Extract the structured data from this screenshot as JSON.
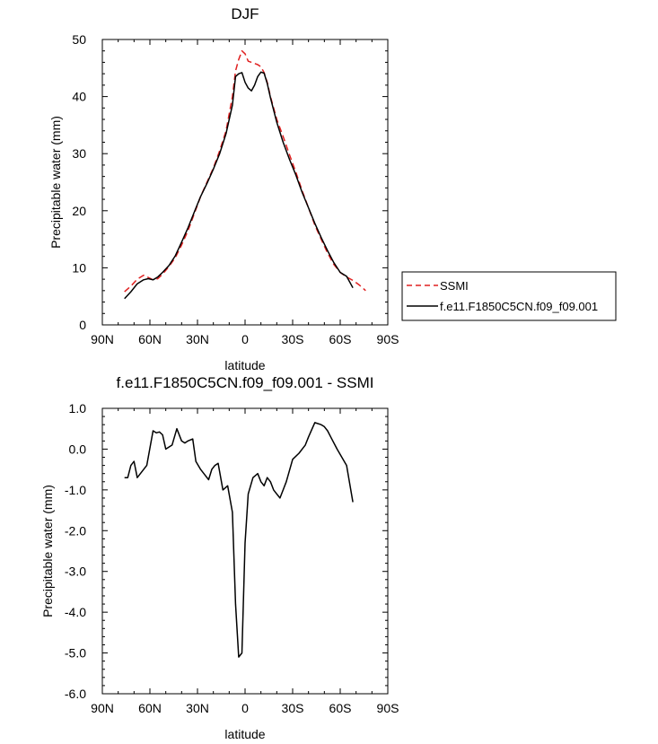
{
  "chart_data": [
    {
      "type": "line",
      "title": "DJF",
      "xlabel": "latitude",
      "ylabel": "Precipitable water (mm)",
      "xlim": [
        -90,
        90
      ],
      "ylim": [
        0,
        50
      ],
      "x_ticks": [
        -90,
        -60,
        -30,
        0,
        30,
        60,
        90
      ],
      "x_tick_labels": [
        "90N",
        "60N",
        "30N",
        "0",
        "30S",
        "60S",
        "90S"
      ],
      "y_ticks": [
        0,
        10,
        20,
        30,
        40,
        50
      ],
      "y_tick_labels": [
        "0",
        "10",
        "20",
        "30",
        "40",
        "50"
      ],
      "legend": "right",
      "series": [
        {
          "name": "SSMI",
          "color": "#e02020",
          "dash": "dashed",
          "x": [
            -76,
            -72,
            -68,
            -64,
            -61,
            -58,
            -55,
            -52,
            -48,
            -44,
            -40,
            -36,
            -32,
            -28,
            -24,
            -20,
            -16,
            -12,
            -8,
            -6,
            -4,
            -2,
            0,
            2,
            4,
            6,
            8,
            10,
            12,
            14,
            16,
            20,
            24,
            28,
            32,
            36,
            40,
            44,
            48,
            52,
            56,
            60,
            64,
            68,
            72,
            76
          ],
          "values": [
            5.8,
            6.8,
            8.0,
            8.7,
            8.3,
            7.9,
            8.1,
            8.9,
            10.2,
            11.8,
            14.0,
            16.5,
            19.5,
            22.5,
            25.0,
            27.5,
            30.5,
            34.0,
            40.0,
            44.5,
            46.5,
            48.0,
            47.5,
            46.2,
            46.0,
            45.8,
            45.6,
            45.2,
            44.2,
            42.5,
            40.0,
            36.0,
            33.0,
            29.8,
            26.8,
            23.5,
            20.5,
            17.5,
            15.0,
            12.6,
            10.6,
            9.2,
            8.4,
            7.8,
            7.0,
            6.0
          ]
        },
        {
          "name": "f.e11.F1850C5CN.f09_f09.001",
          "color": "#000000",
          "dash": "solid",
          "x": [
            -76,
            -72,
            -68,
            -64,
            -61,
            -58,
            -55,
            -52,
            -48,
            -44,
            -40,
            -36,
            -32,
            -28,
            -24,
            -20,
            -16,
            -12,
            -8,
            -6,
            -4,
            -2,
            0,
            2,
            4,
            6,
            8,
            10,
            12,
            14,
            16,
            20,
            24,
            28,
            32,
            36,
            40,
            44,
            48,
            52,
            56,
            60,
            64,
            68
          ],
          "values": [
            4.6,
            5.8,
            7.2,
            7.9,
            8.1,
            7.9,
            8.4,
            9.2,
            10.4,
            12.1,
            14.5,
            17.0,
            19.8,
            22.5,
            24.8,
            27.3,
            30.0,
            33.5,
            38.5,
            43.5,
            44.0,
            44.2,
            42.5,
            41.5,
            41.0,
            42.0,
            43.5,
            44.3,
            44.1,
            42.3,
            39.8,
            35.5,
            32.0,
            29.0,
            26.3,
            23.2,
            20.5,
            17.8,
            15.3,
            13.0,
            10.9,
            9.2,
            8.5,
            6.5
          ]
        }
      ]
    },
    {
      "type": "line",
      "title": "f.e11.F1850C5CN.f09_f09.001 - SSMI",
      "xlabel": "latitude",
      "ylabel": "Precipitable water (mm)",
      "xlim": [
        -90,
        90
      ],
      "ylim": [
        -6,
        1
      ],
      "x_ticks": [
        -90,
        -60,
        -30,
        0,
        30,
        60,
        90
      ],
      "x_tick_labels": [
        "90N",
        "60N",
        "30N",
        "0",
        "30S",
        "60S",
        "90S"
      ],
      "y_ticks": [
        -6,
        -5,
        -4,
        -3,
        -2,
        -1,
        0,
        1
      ],
      "y_tick_labels": [
        "-6.0",
        "-5.0",
        "-4.0",
        "-3.0",
        "-2.0",
        "-1.0",
        "0.0",
        "1.0"
      ],
      "series": [
        {
          "color": "#000000",
          "dash": "solid",
          "x": [
            -76,
            -74,
            -72,
            -70,
            -68,
            -66,
            -62,
            -58,
            -56,
            -54,
            -52,
            -50,
            -46,
            -43,
            -40,
            -38,
            -36,
            -33,
            -31,
            -28,
            -26,
            -23,
            -21,
            -19,
            -17,
            -14,
            -11,
            -8,
            -6,
            -4,
            -2,
            0,
            2,
            5,
            8,
            10,
            12,
            14,
            16,
            18,
            20,
            22,
            24,
            26,
            30,
            34,
            36,
            38,
            40,
            44,
            48,
            50,
            52,
            54,
            58,
            61,
            64,
            68
          ],
          "values": [
            -0.7,
            -0.7,
            -0.4,
            -0.3,
            -0.7,
            -0.6,
            -0.4,
            0.45,
            0.4,
            0.42,
            0.35,
            0.0,
            0.1,
            0.5,
            0.2,
            0.15,
            0.2,
            0.25,
            -0.3,
            -0.5,
            -0.6,
            -0.75,
            -0.5,
            -0.4,
            -0.35,
            -1.0,
            -0.9,
            -1.55,
            -3.8,
            -5.1,
            -5.0,
            -2.3,
            -1.1,
            -0.7,
            -0.6,
            -0.8,
            -0.9,
            -0.7,
            -0.8,
            -1.0,
            -1.1,
            -1.2,
            -1.0,
            -0.8,
            -0.25,
            -0.1,
            0.0,
            0.1,
            0.3,
            0.65,
            0.6,
            0.55,
            0.45,
            0.3,
            0.0,
            -0.2,
            -0.4,
            -1.3
          ]
        }
      ]
    }
  ]
}
